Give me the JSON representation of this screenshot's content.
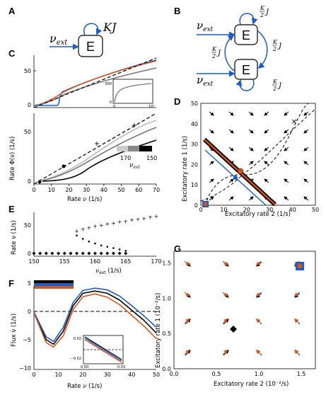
{
  "panels": {
    "A": {
      "label": "A",
      "input_label": "ν",
      "input_sub": "ext",
      "node_label": "E",
      "loop_label": "KJ",
      "colors": {
        "arrow": "#1f5bc4"
      }
    },
    "B": {
      "label": "B",
      "input_label": "ν",
      "input_sub": "ext",
      "node_label": "E",
      "weight_label": "J",
      "weight_frac_num": "K",
      "weight_frac_den": "2"
    },
    "C": {
      "label": "C",
      "top_yticks": [
        "0",
        "50"
      ],
      "inset_yticks": [
        "0",
        "500"
      ],
      "inset_xticks": [
        "0",
        "10²"
      ],
      "bottom_yticks": [
        "0",
        "50"
      ],
      "xticks": [
        "0",
        "10",
        "20",
        "30",
        "40",
        "50",
        "60",
        "70"
      ],
      "xlabel": "Rate",
      "xlabel_var": "ν",
      "xlabel_unit": "(1/s)",
      "ylabel": "Rate Φ(ν)",
      "ylabel_unit": "(1/s)",
      "colorbar_left": "170",
      "colorbar_right": "150",
      "colorbar_label": "ν",
      "colorbar_sub": "ext"
    },
    "D": {
      "label": "D",
      "xticks": [
        "0",
        "10",
        "20",
        "30",
        "40",
        "50"
      ],
      "yticks": [
        "0",
        "10",
        "20",
        "30",
        "40",
        "50"
      ],
      "xlabel": "Excitatory rate 2",
      "xlabel_unit": "(1/s)",
      "ylabel": "Excitatory rate 1",
      "ylabel_unit": "(1/s)"
    },
    "E": {
      "label": "E",
      "xticks": [
        "150",
        "155",
        "160",
        "165",
        "170"
      ],
      "yticks": [
        "0",
        "50"
      ],
      "xlabel_var": "ν",
      "xlabel_sub": "ext",
      "xlabel_unit": "(1/s)",
      "ylabel": "Rate ν",
      "ylabel_unit": "(1/s)"
    },
    "F": {
      "label": "F",
      "xticks": [
        "0",
        "10",
        "20",
        "30",
        "40",
        "50"
      ],
      "yticks": [
        "5",
        "0",
        "−5",
        "−10"
      ],
      "inset_yticks": [
        "0.02",
        "−0.02"
      ],
      "inset_xticks": [
        "0.00",
        "0.03"
      ],
      "xlabel": "Rate",
      "xlabel_var": "ν",
      "xlabel_unit": "(1/s)",
      "ylabel": "Flux ν̇",
      "ylabel_unit": "(1/s)"
    },
    "G": {
      "label": "G",
      "xticks": [
        "0.0",
        "0.5",
        "1.0",
        "1.5"
      ],
      "yticks": [
        "0.0",
        "0.5",
        "1.0",
        "1.5"
      ],
      "xlabel": "Excitatory rate 2",
      "xlabel_unit": "(10⁻²/s)",
      "ylabel": "Excitatory rate 1",
      "ylabel_unit": "(10⁻²/s)"
    }
  },
  "colors": {
    "blue": "#1f5bc4",
    "orange": "#d4561b",
    "gray": "#777777",
    "lightgray": "#bbbbbb"
  },
  "chart_data": [
    {
      "panel": "E",
      "type": "scatter",
      "series": [
        {
          "marker": "diamond",
          "x": [
            150,
            151,
            152,
            153,
            154,
            155,
            156,
            157,
            158,
            159,
            160,
            161,
            162,
            163,
            164,
            165
          ],
          "y": [
            0,
            0,
            0,
            0,
            0,
            0,
            0,
            0,
            0,
            0,
            0,
            0,
            0,
            0,
            0,
            0
          ]
        },
        {
          "marker": "plus",
          "x": [
            157,
            158,
            159,
            160,
            161,
            162,
            163,
            164,
            165,
            166,
            167,
            168,
            169,
            170
          ],
          "y": [
            34,
            37,
            39,
            41,
            43,
            45,
            46,
            48,
            49,
            51,
            52,
            53,
            55,
            56
          ]
        },
        {
          "marker": "dot",
          "x": [
            157,
            158,
            159,
            160,
            161,
            162,
            163,
            164,
            165
          ],
          "y": [
            27,
            22,
            18,
            15,
            12,
            10,
            8,
            6,
            4
          ]
        }
      ],
      "xlim": [
        150,
        170
      ],
      "ylim": [
        0,
        60
      ]
    },
    {
      "panel": "F",
      "type": "line",
      "series": [
        {
          "color": "#000000",
          "x": [
            0,
            5,
            8,
            12,
            16,
            20,
            25,
            30,
            35,
            40,
            45,
            50
          ],
          "y": [
            -0.2,
            -5,
            -5.8,
            -3.5,
            1,
            3.2,
            3.6,
            3.2,
            2,
            0.2,
            -1.6,
            -3.8
          ]
        },
        {
          "color": "#1f5bc4",
          "x": [
            0,
            5,
            8,
            12,
            16,
            20,
            25,
            30,
            35,
            40,
            45,
            50
          ],
          "y": [
            -0.1,
            -4.5,
            -5.3,
            -2.8,
            1.6,
            3.7,
            4.1,
            3.8,
            2.7,
            1,
            -0.8,
            -2.8
          ]
        },
        {
          "color": "#d4561b",
          "x": [
            0,
            5,
            8,
            12,
            16,
            20,
            25,
            30,
            35,
            40,
            45,
            50
          ],
          "y": [
            -0.3,
            -5.5,
            -6.3,
            -4.3,
            0.3,
            2.6,
            3.1,
            2.5,
            1.2,
            -0.7,
            -2.6,
            -4.8
          ]
        }
      ],
      "xlim": [
        0,
        50
      ],
      "ylim": [
        -10,
        7
      ]
    },
    {
      "panel": "C",
      "type": "line",
      "series": [
        {
          "color": "#1f5bc4",
          "x": [
            0,
            14,
            16,
            20,
            30,
            40,
            50,
            60,
            70
          ],
          "y": [
            0,
            0,
            11,
            19,
            28,
            37,
            45,
            52,
            59
          ]
        },
        {
          "color": "#d4561b",
          "x": [
            0,
            10,
            15,
            20,
            30,
            40,
            50,
            60,
            70
          ],
          "y": [
            0,
            5,
            12,
            19,
            28,
            37,
            45,
            52,
            59
          ]
        },
        {
          "color": "#777777",
          "x": [
            0,
            10,
            15,
            20,
            30,
            40,
            50,
            60,
            70
          ],
          "y": [
            0,
            5,
            11,
            17,
            25,
            33,
            40,
            47,
            53
          ]
        },
        {
          "color": "#000000",
          "dashed": true,
          "x": [
            0,
            10,
            20,
            30,
            40,
            50,
            60,
            70
          ],
          "y": [
            0,
            10,
            20,
            30,
            40,
            50,
            60,
            70
          ]
        }
      ],
      "xlim": [
        0,
        70
      ],
      "ylim": [
        0,
        70
      ]
    }
  ]
}
